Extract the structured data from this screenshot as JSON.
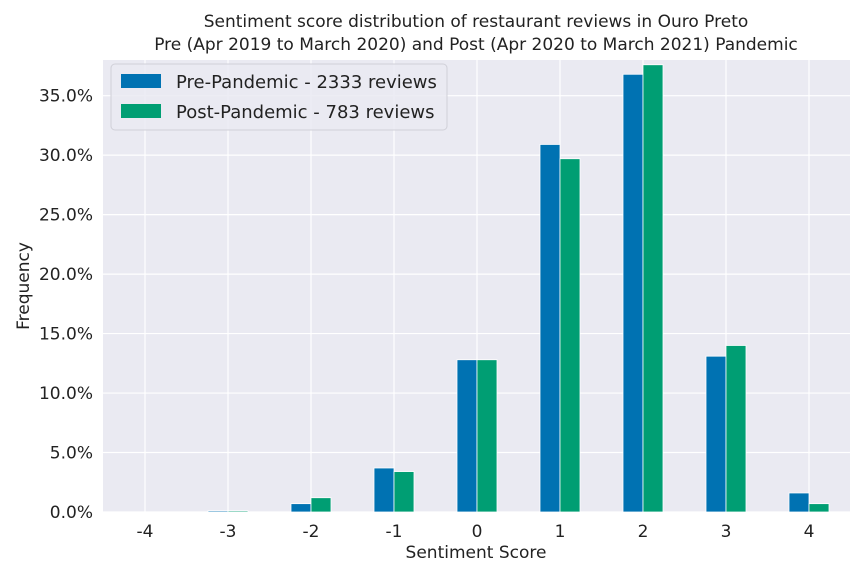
{
  "chart_data": {
    "type": "bar",
    "title": "Sentiment score distribution of restaurant reviews in Ouro Preto",
    "subtitle": "Pre (Apr 2019 to March 2020) and Post (Apr 2020 to March 2021) Pandemic",
    "xlabel": "Sentiment Score",
    "ylabel": "Frequency",
    "categories": [
      "-4",
      "-3",
      "-2",
      "-1",
      "0",
      "1",
      "2",
      "3",
      "4"
    ],
    "series": [
      {
        "name": "Pre-Pandemic - 2333 reviews",
        "color": "#0072b2",
        "values": [
          0.0,
          0.1,
          0.7,
          3.7,
          12.8,
          30.9,
          36.8,
          13.1,
          1.6
        ]
      },
      {
        "name": "Post-Pandemic - 783 reviews",
        "color": "#009e73",
        "values": [
          0.0,
          0.1,
          1.2,
          3.4,
          12.8,
          29.7,
          37.6,
          14.0,
          0.7
        ]
      }
    ],
    "ylim": [
      0,
      38
    ],
    "yticks": [
      0,
      5,
      10,
      15,
      20,
      25,
      30,
      35
    ],
    "ytick_labels": [
      "0.0%",
      "5.0%",
      "10.0%",
      "15.0%",
      "20.0%",
      "25.0%",
      "30.0%",
      "35.0%"
    ],
    "grid": true,
    "legend_position": "top-left",
    "background_color": "#eaeaf2"
  }
}
